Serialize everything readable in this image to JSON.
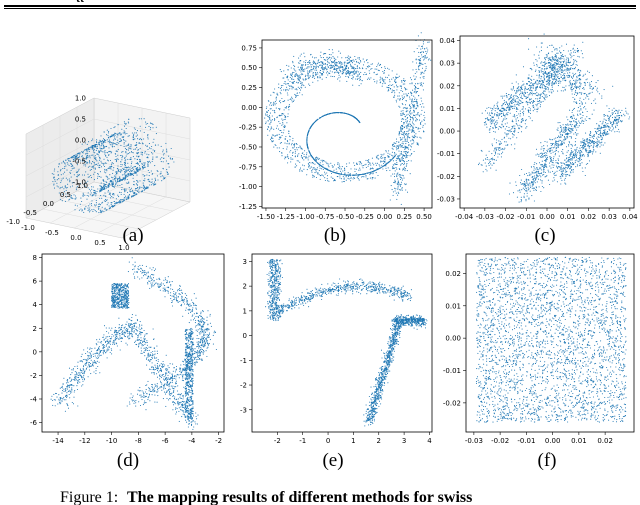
{
  "header_cut_text": "tt",
  "caption_prefix": "Figure 1:",
  "caption_bold": "The mapping results of different methods for swiss",
  "accent_color": "#1f77b4",
  "chart_data": [
    {
      "id": "a",
      "type": "scatter",
      "label": "(a)",
      "projection": "3d",
      "title": "",
      "xlabel": "",
      "ylabel": "",
      "z_ticks": [
        "1.0",
        "0.5",
        "0.0",
        "-0.5",
        "-1.0"
      ],
      "y_ticks": [
        "1.0",
        "0.5",
        "0.0",
        "-0.5",
        "-1.0"
      ],
      "x_ticks": [
        "-1.0",
        "-0.5",
        "0.0",
        "0.5",
        "1.0"
      ],
      "shape": "3d swiss roll",
      "xlim": [
        -1.0,
        1.0
      ],
      "ylim": [
        -1.0,
        1.0
      ],
      "zlim": [
        -1.0,
        1.0
      ],
      "point_count": 1400,
      "seed": 11
    },
    {
      "id": "b",
      "type": "scatter",
      "label": "(b)",
      "title": "",
      "xlabel": "",
      "ylabel": "",
      "xlim": [
        -1.55,
        0.6
      ],
      "ylim": [
        -1.27,
        0.85
      ],
      "x_ticks": [
        "-1.50",
        "-1.25",
        "-1.00",
        "-0.75",
        "-0.50",
        "-0.25",
        "0.00",
        "0.25",
        "0.50"
      ],
      "x_tick_values": [
        -1.5,
        -1.25,
        -1.0,
        -0.75,
        -0.5,
        -0.25,
        0.0,
        0.25,
        0.5
      ],
      "y_ticks": [
        "0.75",
        "0.50",
        "0.25",
        "0.00",
        "-0.25",
        "-0.50",
        "-0.75",
        "-1.00",
        "-1.25"
      ],
      "y_tick_values": [
        0.75,
        0.5,
        0.25,
        0.0,
        -0.25,
        -0.5,
        -0.75,
        -1.0,
        -1.25
      ],
      "shape": "spiral with outer arcs",
      "point_count": 2600,
      "seed": 23
    },
    {
      "id": "c",
      "type": "scatter",
      "label": "(c)",
      "title": "",
      "xlabel": "",
      "ylabel": "",
      "xlim": [
        -0.042,
        0.042
      ],
      "ylim": [
        -0.034,
        0.042
      ],
      "x_ticks": [
        "-0.04",
        "-0.03",
        "-0.02",
        "-0.01",
        "0.00",
        "0.01",
        "0.02",
        "0.03",
        "0.04"
      ],
      "x_tick_values": [
        -0.04,
        -0.03,
        -0.02,
        -0.01,
        0.0,
        0.01,
        0.02,
        0.03,
        0.04
      ],
      "y_ticks": [
        "0.04",
        "0.03",
        "0.02",
        "0.01",
        "0.00",
        "-0.01",
        "-0.02",
        "-0.03"
      ],
      "y_tick_values": [
        0.04,
        0.03,
        0.02,
        0.01,
        0.0,
        -0.01,
        -0.02,
        -0.03
      ],
      "shape": "diagonal bands",
      "point_count": 2400,
      "seed": 37
    },
    {
      "id": "d",
      "type": "scatter",
      "label": "(d)",
      "title": "",
      "xlabel": "",
      "ylabel": "",
      "xlim": [
        -15.2,
        -1.6
      ],
      "ylim": [
        -6.8,
        8.3
      ],
      "x_ticks": [
        "-14",
        "-12",
        "-10",
        "-8",
        "-6",
        "-4",
        "-2"
      ],
      "x_tick_values": [
        -14,
        -12,
        -10,
        -8,
        -6,
        -4,
        -2
      ],
      "y_ticks": [
        "8",
        "6",
        "4",
        "2",
        "0",
        "-2",
        "-4",
        "-6"
      ],
      "y_tick_values": [
        8,
        6,
        4,
        2,
        0,
        -2,
        -4,
        -6
      ],
      "shape": "curved bands with dense block",
      "point_count": 2600,
      "seed": 41
    },
    {
      "id": "e",
      "type": "scatter",
      "label": "(e)",
      "title": "",
      "xlabel": "",
      "ylabel": "",
      "xlim": [
        -3.0,
        4.1
      ],
      "ylim": [
        -3.9,
        3.3
      ],
      "x_ticks": [
        "-2",
        "-1",
        "0",
        "1",
        "2",
        "3",
        "4"
      ],
      "x_tick_values": [
        -2,
        -1,
        0,
        1,
        2,
        3,
        4
      ],
      "y_ticks": [
        "3",
        "2",
        "1",
        "0",
        "-1",
        "-2",
        "-3"
      ],
      "y_tick_values": [
        3,
        2,
        1,
        0,
        -1,
        -2,
        -3
      ],
      "shape": "thin curve with dense segments",
      "point_count": 2200,
      "seed": 53
    },
    {
      "id": "f",
      "type": "scatter",
      "label": "(f)",
      "title": "",
      "xlabel": "",
      "ylabel": "",
      "xlim": [
        -0.033,
        0.031
      ],
      "ylim": [
        -0.029,
        0.026
      ],
      "x_ticks": [
        "-0.03",
        "-0.02",
        "-0.01",
        "0.00",
        "0.01",
        "0.02"
      ],
      "x_tick_values": [
        -0.03,
        -0.02,
        -0.01,
        0.0,
        0.01,
        0.02
      ],
      "y_ticks": [
        "0.02",
        "0.01",
        "0.00",
        "-0.01",
        "-0.02"
      ],
      "y_tick_values": [
        0.02,
        0.01,
        0.0,
        -0.01,
        -0.02
      ],
      "shape": "uniform square",
      "point_count": 3200,
      "seed": 67
    }
  ]
}
